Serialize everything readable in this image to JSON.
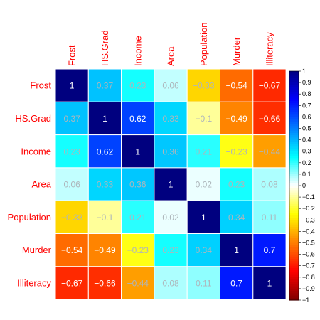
{
  "chart_data": {
    "type": "heatmap",
    "title": "",
    "variables": [
      "Frost",
      "HS.Grad",
      "Income",
      "Area",
      "Population",
      "Murder",
      "Illiteracy"
    ],
    "matrix": [
      [
        1,
        0.37,
        0.23,
        0.06,
        -0.33,
        -0.54,
        -0.67
      ],
      [
        0.37,
        1,
        0.62,
        0.33,
        -0.1,
        -0.49,
        -0.66
      ],
      [
        0.23,
        0.62,
        1,
        0.36,
        0.21,
        -0.23,
        -0.44
      ],
      [
        0.06,
        0.33,
        0.36,
        1,
        0.02,
        0.23,
        0.08
      ],
      [
        -0.33,
        -0.1,
        0.21,
        0.02,
        1,
        0.34,
        0.11
      ],
      [
        -0.54,
        -0.49,
        -0.23,
        0.23,
        0.34,
        1,
        0.7
      ],
      [
        -0.67,
        -0.66,
        -0.44,
        0.08,
        0.11,
        0.7,
        1
      ]
    ],
    "value_range": [
      -1,
      1
    ],
    "colorbar": {
      "ticks": [
        1,
        0.9,
        0.8,
        0.7,
        0.6,
        0.5,
        0.4,
        0.3,
        0.2,
        0.1,
        0,
        -0.1,
        -0.2,
        -0.3,
        -0.4,
        -0.5,
        -0.6,
        -0.7,
        -0.8,
        -0.9,
        -1
      ],
      "tick_labels": [
        "1",
        "0.9",
        "0.8",
        "0.7",
        "0.6",
        "0.5",
        "0.4",
        "0.3",
        "0.2",
        "0.1",
        "0",
        "−0.1",
        "−0.2",
        "−0.3",
        "−0.4",
        "−0.5",
        "−0.6",
        "−0.7",
        "−0.8",
        "−0.9",
        "−1"
      ],
      "placement": "right"
    },
    "palette": [
      "#7F0000",
      "#FF0000",
      "#FF7F00",
      "#FFFF00",
      "#FFFFFF",
      "#00FFFF",
      "#007FFF",
      "#0000FF",
      "#00007F"
    ],
    "label_color": "#FF0000",
    "grid_color": "#FFFFFF"
  }
}
